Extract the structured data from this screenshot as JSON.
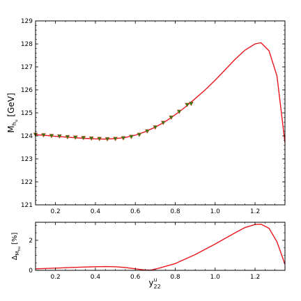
{
  "colors": {
    "curve": "#e8151b",
    "marker_fill": "#2e7d18",
    "marker_edge": "#e53b1e",
    "axes": "#000000"
  },
  "chart_data": [
    {
      "type": "line",
      "xlim": [
        0.1,
        1.35
      ],
      "ylim": [
        121,
        129
      ],
      "xticks": [
        "0.2",
        "0.4",
        "0.6",
        "0.8",
        "1.0",
        "1.2"
      ],
      "xtick_values": [
        0.2,
        0.4,
        0.6,
        0.8,
        1.0,
        1.2
      ],
      "yticks": [
        "121",
        "122",
        "123",
        "124",
        "125",
        "126",
        "127",
        "128",
        "129"
      ],
      "ytick_values": [
        121,
        122,
        123,
        124,
        125,
        126,
        127,
        128,
        129
      ],
      "ylabel_main": "M",
      "ylabel_sub": "h",
      "ylabel_subsub": "u",
      "ylabel_unit": " [GeV]",
      "series": [
        {
          "kind": "line",
          "x": [
            0.1,
            0.15,
            0.2,
            0.25,
            0.3,
            0.35,
            0.4,
            0.45,
            0.5,
            0.55,
            0.6,
            0.65,
            0.7,
            0.75,
            0.8,
            0.85,
            0.9,
            0.95,
            1.0,
            1.05,
            1.1,
            1.15,
            1.2,
            1.23,
            1.27,
            1.31,
            1.35
          ],
          "y": [
            124.05,
            124.02,
            123.98,
            123.95,
            123.92,
            123.89,
            123.87,
            123.86,
            123.88,
            123.93,
            124.03,
            124.18,
            124.38,
            124.62,
            124.92,
            125.25,
            125.62,
            126.0,
            126.42,
            126.87,
            127.33,
            127.73,
            128.0,
            128.05,
            127.7,
            126.6,
            123.7
          ]
        },
        {
          "kind": "markers",
          "x": [
            0.1,
            0.14,
            0.18,
            0.22,
            0.26,
            0.3,
            0.34,
            0.38,
            0.42,
            0.46,
            0.5,
            0.54,
            0.58,
            0.62,
            0.66,
            0.7,
            0.74,
            0.78,
            0.82,
            0.86,
            0.88
          ],
          "y": [
            124.05,
            124.03,
            124.0,
            123.98,
            123.95,
            123.93,
            123.91,
            123.89,
            123.87,
            123.86,
            123.87,
            123.9,
            123.96,
            124.05,
            124.2,
            124.37,
            124.57,
            124.8,
            125.05,
            125.35,
            125.4
          ]
        }
      ]
    },
    {
      "type": "line",
      "xlim": [
        0.1,
        1.35
      ],
      "ylim": [
        0,
        3.2
      ],
      "xticks": [
        "0.2",
        "0.4",
        "0.6",
        "0.8",
        "1.0",
        "1.2"
      ],
      "xtick_values": [
        0.2,
        0.4,
        0.6,
        0.8,
        1.0,
        1.2
      ],
      "yticks": [
        "0",
        "2"
      ],
      "ytick_values": [
        0,
        2
      ],
      "ylabel_main": "Δ",
      "ylabel_sub": "M",
      "ylabel_subsub": "hu",
      "ylabel_unit": " [%]",
      "xlabel_main": "y",
      "xlabel_sup": "u",
      "xlabel_sub": "22",
      "series": [
        {
          "kind": "line",
          "x": [
            0.1,
            0.2,
            0.3,
            0.4,
            0.45,
            0.5,
            0.55,
            0.6,
            0.65,
            0.68,
            0.72,
            0.8,
            0.9,
            1.0,
            1.1,
            1.15,
            1.2,
            1.23,
            1.27,
            1.31,
            1.35
          ],
          "y": [
            0.1,
            0.15,
            0.2,
            0.24,
            0.25,
            0.24,
            0.19,
            0.1,
            0.02,
            0.02,
            0.15,
            0.45,
            1.05,
            1.75,
            2.5,
            2.85,
            3.05,
            3.07,
            2.8,
            1.9,
            0.4
          ]
        }
      ]
    }
  ]
}
